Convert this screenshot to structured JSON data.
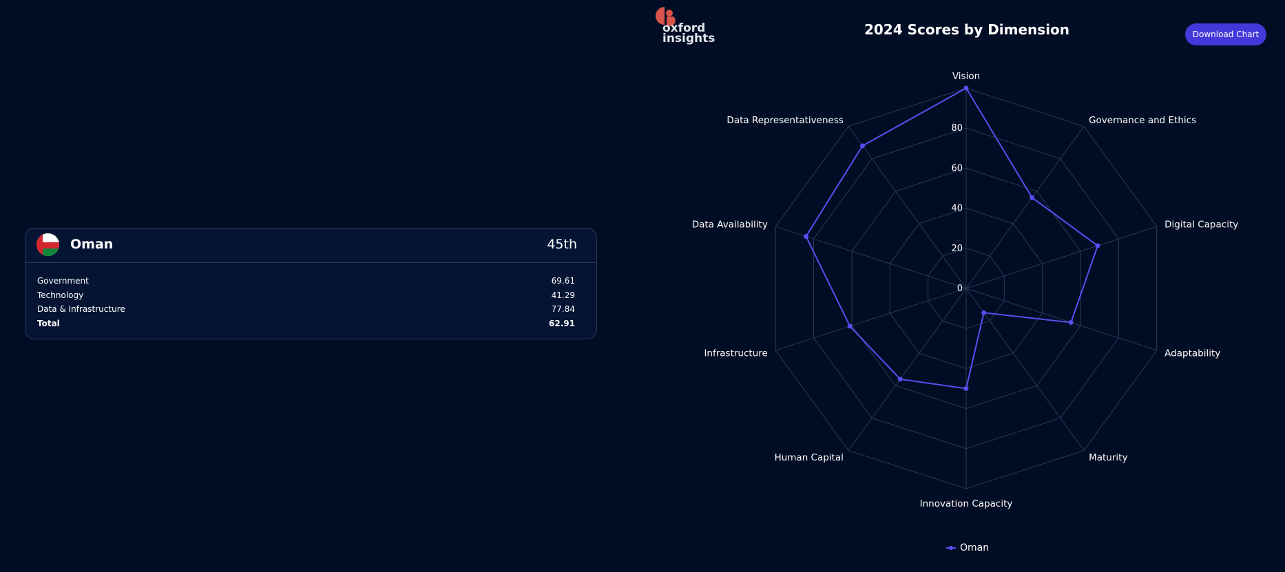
{
  "card": {
    "country": "Oman",
    "rank": "45th",
    "rows": [
      {
        "label": "Government",
        "value": "69.61"
      },
      {
        "label": "Technology",
        "value": "41.29"
      },
      {
        "label": "Data & Infrastructure",
        "value": "77.84"
      },
      {
        "label": "Total",
        "value": "62.91"
      }
    ]
  },
  "logo": {
    "line1": "oxford",
    "line2": "insights"
  },
  "download_label": "Download Chart",
  "colors": {
    "background": "#010d24",
    "series": "#5a4ef2",
    "grid": "#2b3a58",
    "button": "#4338d9",
    "logo": "#d8534a"
  },
  "chart_data": {
    "type": "radar",
    "title": "2024 Scores by Dimension",
    "axes": [
      "Vision",
      "Governance and Ethics",
      "Digital Capacity",
      "Adaptability",
      "Maturity",
      "Innovation Capacity",
      "Human Capital",
      "Infrastructure",
      "Data Availability",
      "Data Representativeness"
    ],
    "ticks": [
      "0",
      "20",
      "40",
      "60",
      "80"
    ],
    "rlim": [
      0,
      100
    ],
    "legend": "bottom",
    "series": [
      {
        "name": "Oman",
        "values": [
          100,
          56,
          69,
          55,
          15,
          50,
          56,
          61,
          84,
          88
        ]
      }
    ]
  }
}
